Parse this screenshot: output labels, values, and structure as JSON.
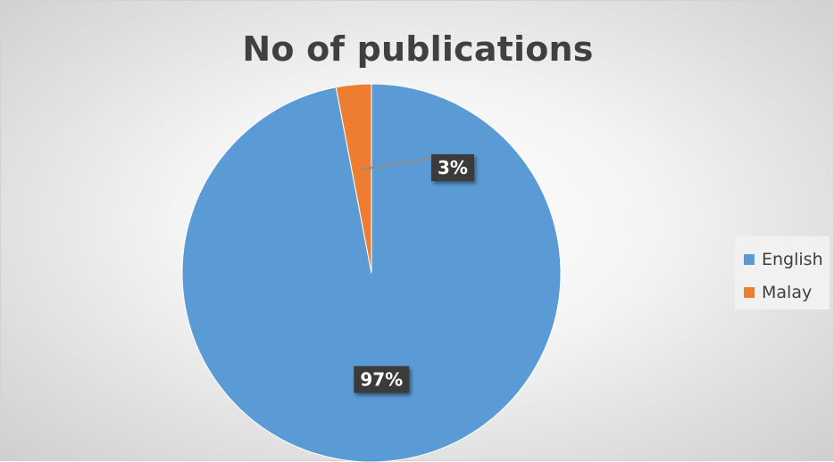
{
  "chart_data": {
    "type": "pie",
    "title": "No of publications",
    "categories": [
      "English",
      "Malay"
    ],
    "values": [
      97,
      3
    ],
    "data_labels": [
      "97%",
      "3%"
    ],
    "colors": [
      "#5B9BD5",
      "#ED7D31"
    ],
    "legend_position": "right"
  }
}
